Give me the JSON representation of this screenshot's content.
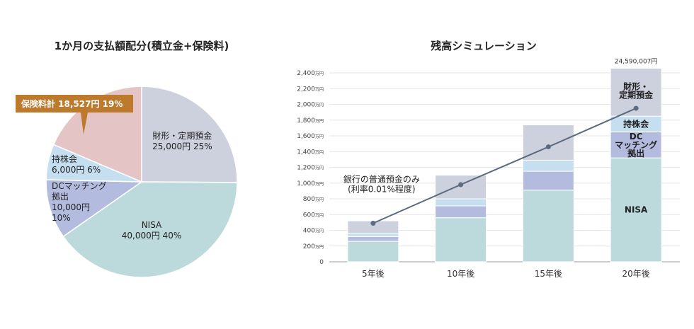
{
  "chart_data": [
    {
      "type": "pie",
      "title": "1か月の支払額配分(積立金+保険料)",
      "slices": [
        {
          "lines": [
            "財形・定期預金",
            "25,000円 25%"
          ],
          "value": 25000,
          "percent": 25,
          "color": "#cdd1de"
        },
        {
          "lines": [
            "NISA",
            "40,000円 40%"
          ],
          "value": 40000,
          "percent": 40,
          "color": "#bcdadb"
        },
        {
          "lines": [
            "DCマッチング",
            "拠出",
            "10,000円",
            "10%"
          ],
          "value": 10000,
          "percent": 10,
          "color": "#b3bcdf"
        },
        {
          "lines": [
            "持株会",
            "6,000円 6%"
          ],
          "value": 6000,
          "percent": 6,
          "color": "#c5dff1"
        },
        {
          "lines": [],
          "value": 18527,
          "percent": 19,
          "color": "#e4c4c4"
        }
      ],
      "callout": {
        "text": "保険料計 18,527円 19%",
        "color": "#bd7a2c"
      }
    },
    {
      "type": "bar",
      "stacked": true,
      "title": "残高シミュレーション",
      "categories": [
        "5年後",
        "10年後",
        "15年後",
        "20年後"
      ],
      "ylim": [
        0,
        2400
      ],
      "y_ticks": [
        0,
        200,
        400,
        600,
        800,
        1000,
        1200,
        1400,
        1600,
        1800,
        2000,
        2200,
        2400
      ],
      "y_unit": "万円",
      "series": [
        {
          "key": "nisa",
          "values": [
            260,
            560,
            910,
            1320
          ],
          "color": "#bcdadb"
        },
        {
          "key": "dc",
          "values": [
            60,
            150,
            240,
            330
          ],
          "color": "#b3bcdf"
        },
        {
          "key": "mochikabu",
          "values": [
            40,
            90,
            140,
            200
          ],
          "color": "#c5dff1"
        },
        {
          "key": "zaikei",
          "values": [
            160,
            300,
            450,
            609
          ],
          "color": "#cdd1de"
        }
      ],
      "segment_labels_20y": {
        "nisa": [
          "NISA"
        ],
        "dc": [
          "DC",
          "マッチング",
          "拠出"
        ],
        "mochikabu": [
          "持株会"
        ],
        "zaikei": [
          "財形・",
          "定期預金"
        ]
      },
      "total_label_20y": "24,590,007円",
      "line": {
        "label": [
          "銀行の普通預金のみ",
          "(利率0.01%程度)"
        ],
        "values": [
          490,
          980,
          1460,
          1950
        ],
        "color": "#5c6a80"
      }
    }
  ]
}
